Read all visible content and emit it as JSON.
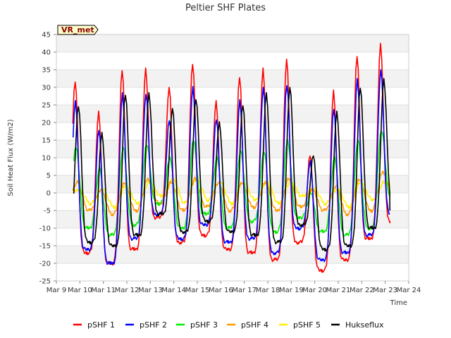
{
  "chart_data": {
    "type": "line",
    "title": "Peltier SHF Plates",
    "xlabel": "Time",
    "ylabel": "Soil Heat Flux (W/m2)",
    "site_label": "VR_met",
    "ylim": [
      -25,
      45
    ],
    "yticks": [
      -25,
      -20,
      -15,
      -10,
      -5,
      0,
      5,
      10,
      15,
      20,
      25,
      30,
      35,
      40,
      45
    ],
    "xticks": [
      "Mar 9",
      "Mar 10",
      "Mar 11",
      "Mar 12",
      "Mar 13",
      "Mar 14",
      "Mar 15",
      "Mar 16",
      "Mar 17",
      "Mar 18",
      "Mar 19",
      "Mar 20",
      "Mar 21",
      "Mar 22",
      "Mar 23",
      "Mar 24"
    ],
    "xlim_days": [
      9,
      24
    ],
    "grid": "horizontal bands",
    "legend_position": "bottom",
    "days": [
      9.8,
      10.8,
      11.8,
      12.8,
      13.8,
      14.8,
      15.8,
      16.8,
      17.8,
      18.8,
      19.8,
      20.8,
      21.8,
      22.8,
      23.0
    ],
    "series": [
      {
        "name": "pSHF 1",
        "color": "#ff0000",
        "peaks": [
          32,
          23,
          35,
          35,
          30,
          37,
          26,
          33,
          35,
          38,
          11,
          29,
          39,
          42
        ],
        "troughs": [
          -12,
          -17,
          -20,
          -16,
          -7,
          -14,
          -12,
          -16,
          -17,
          -19,
          -14,
          -22,
          -19,
          -13,
          -8
        ]
      },
      {
        "name": "pSHF 2",
        "color": "#0000ff",
        "peaks": [
          26,
          18,
          28,
          28,
          21,
          30,
          21,
          26,
          30,
          31,
          9,
          24,
          32,
          35
        ],
        "troughs": [
          -13,
          -16,
          -20,
          -13,
          -6,
          -13,
          -9,
          -14,
          -13,
          -17,
          -10,
          -19,
          -17,
          -12,
          -6
        ]
      },
      {
        "name": "pSHF 3",
        "color": "#00ee00",
        "peaks": [
          13,
          7,
          13,
          14,
          10,
          15,
          10,
          12,
          12,
          15,
          0,
          10,
          15,
          18
        ],
        "troughs": [
          -7,
          -10,
          -12,
          -9,
          -3,
          -10,
          -6,
          -10,
          -8,
          -11,
          -7,
          -11,
          -12,
          -10,
          -2
        ]
      },
      {
        "name": "pSHF 4",
        "color": "#ff9900",
        "peaks": [
          3,
          1,
          3,
          4,
          3,
          4,
          3,
          3,
          3,
          4,
          1,
          2,
          4,
          6
        ],
        "troughs": [
          -2,
          -5,
          -6,
          -5,
          -3,
          -5,
          -4,
          -5,
          -4,
          -5,
          -4,
          -5,
          -6,
          -5,
          -1
        ]
      },
      {
        "name": "pSHF 5",
        "color": "#ffee00",
        "peaks": [
          1,
          1,
          2,
          3,
          4,
          4,
          3,
          3,
          3,
          3,
          1,
          1,
          3,
          3
        ],
        "troughs": [
          -1,
          -3,
          -4,
          -3,
          -1,
          -3,
          -2,
          -3,
          -2,
          -3,
          -1,
          -3,
          -4,
          -2,
          2
        ]
      },
      {
        "name": "Hukseflux",
        "color": "#000000",
        "peaks": [
          25,
          17,
          28,
          28,
          24,
          27,
          20,
          25,
          28,
          30,
          11,
          23,
          30,
          32
        ],
        "troughs": [
          -10,
          -14,
          -15,
          -12,
          -6,
          -11,
          -8,
          -11,
          -12,
          -14,
          -9,
          -16,
          -15,
          -10,
          -5
        ]
      }
    ]
  }
}
